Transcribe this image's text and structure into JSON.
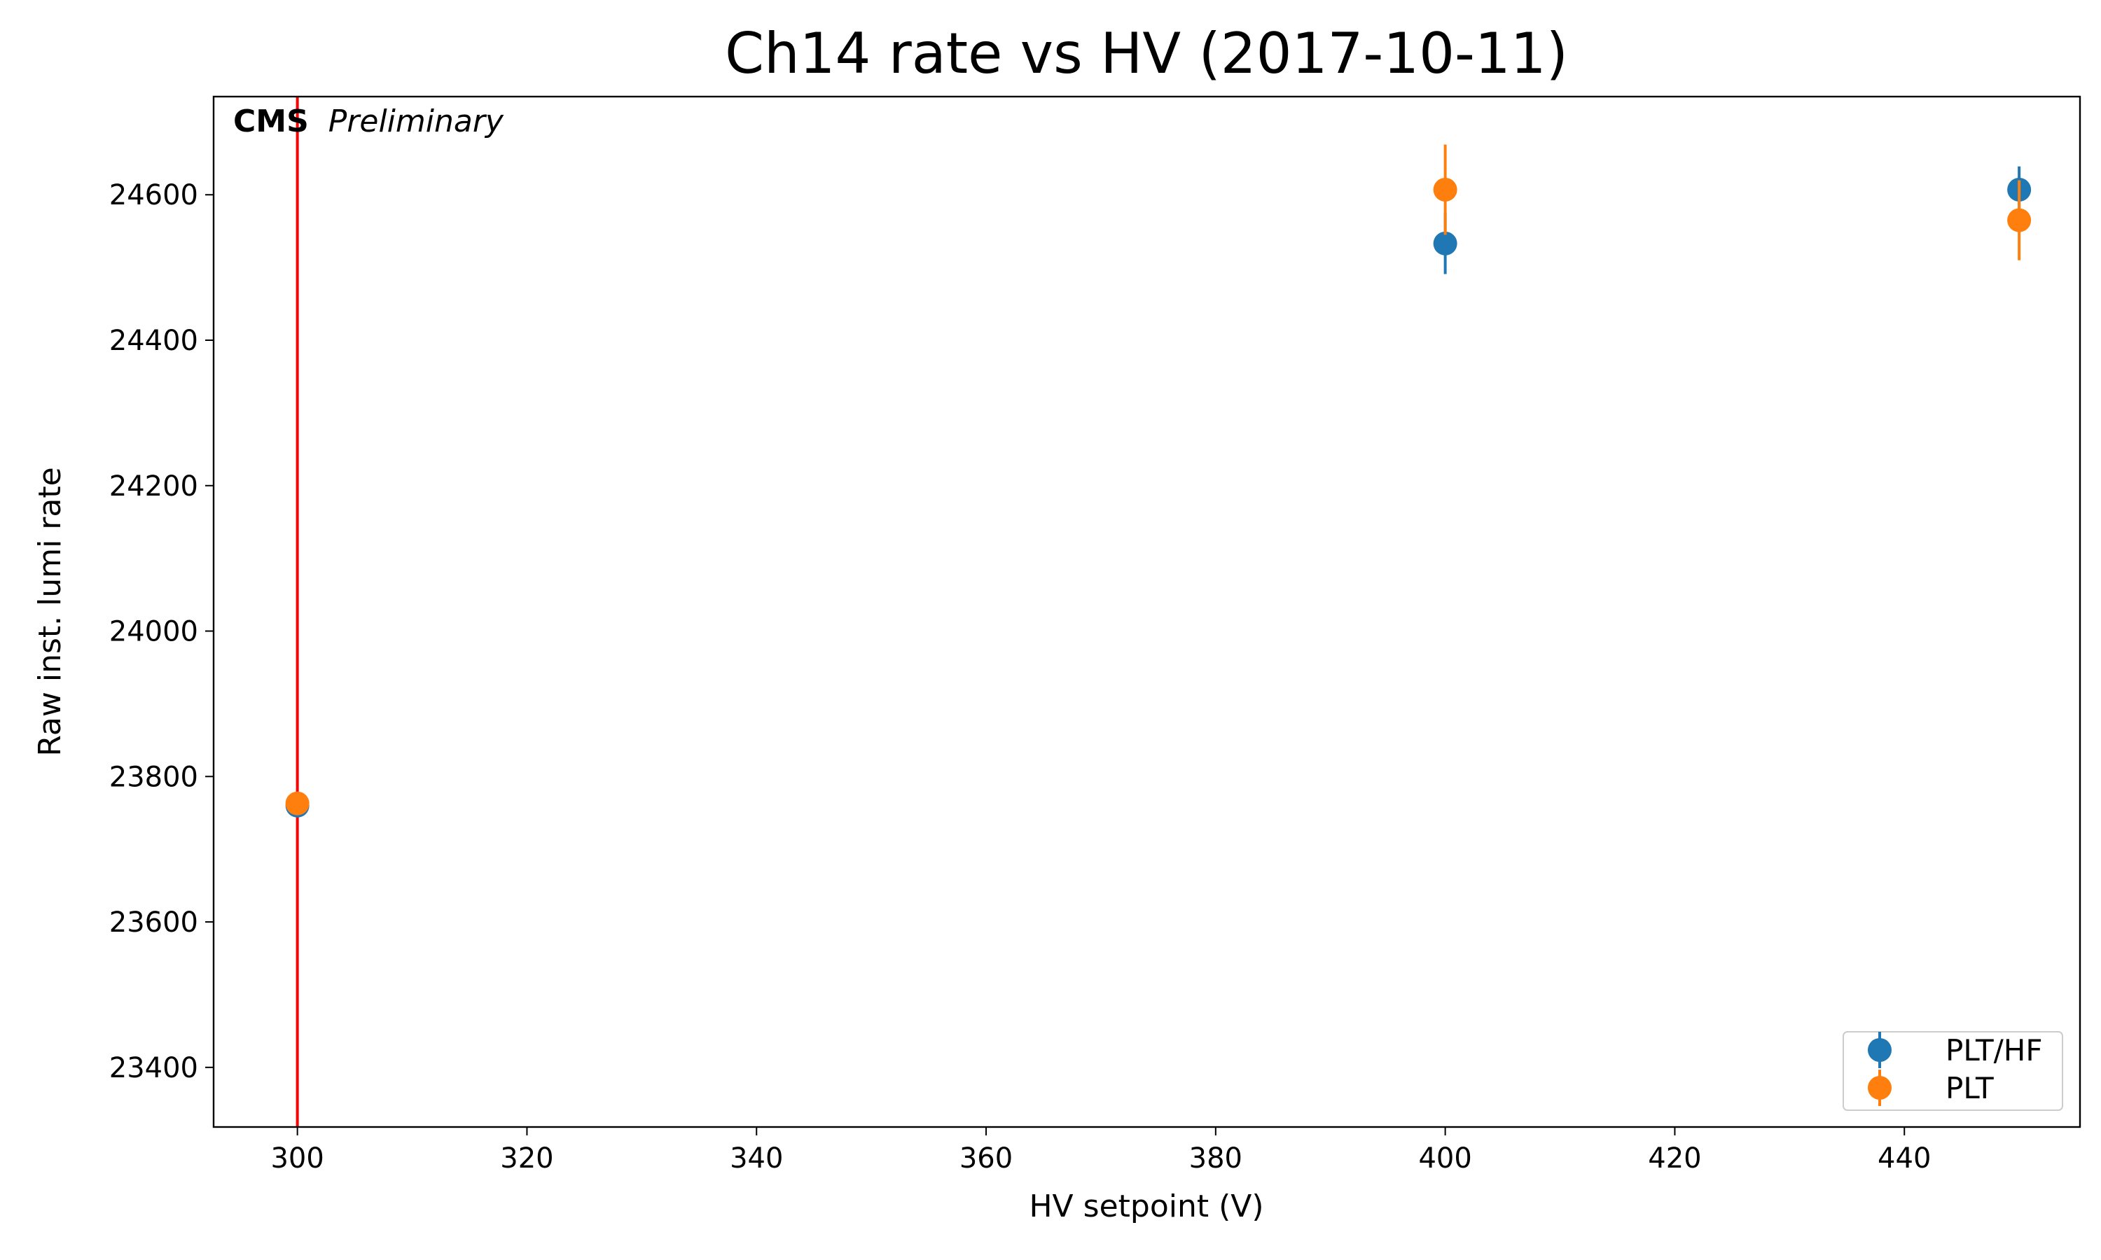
{
  "chart_data": {
    "type": "scatter",
    "title": "Ch14 rate vs HV (2017-10-11)",
    "xlabel": "HV setpoint (V)",
    "ylabel": "Raw inst. lumi rate",
    "xlim": [
      292.7,
      455.3
    ],
    "ylim": [
      23318,
      24735
    ],
    "xticks": [
      300,
      320,
      340,
      360,
      380,
      400,
      420,
      440
    ],
    "yticks": [
      23400,
      23600,
      23800,
      24000,
      24200,
      24400,
      24600
    ],
    "grid": false,
    "legend_position": "bottom-right",
    "annotation": {
      "bold": "CMS",
      "italic": "Preliminary"
    },
    "vline": {
      "x": 300,
      "color": "#ff0000"
    },
    "series": [
      {
        "name": "PLT/HF",
        "color": "#1f77b4",
        "points": [
          {
            "x": 300,
            "y": 23760,
            "err": 12
          },
          {
            "x": 400,
            "y": 24533,
            "err": 42
          },
          {
            "x": 450,
            "y": 24607,
            "err": 32
          }
        ]
      },
      {
        "name": "PLT",
        "color": "#ff7f0e",
        "points": [
          {
            "x": 300,
            "y": 23763,
            "err": 12
          },
          {
            "x": 400,
            "y": 24607,
            "err": 62
          },
          {
            "x": 450,
            "y": 24565,
            "err": 55
          }
        ]
      }
    ]
  }
}
